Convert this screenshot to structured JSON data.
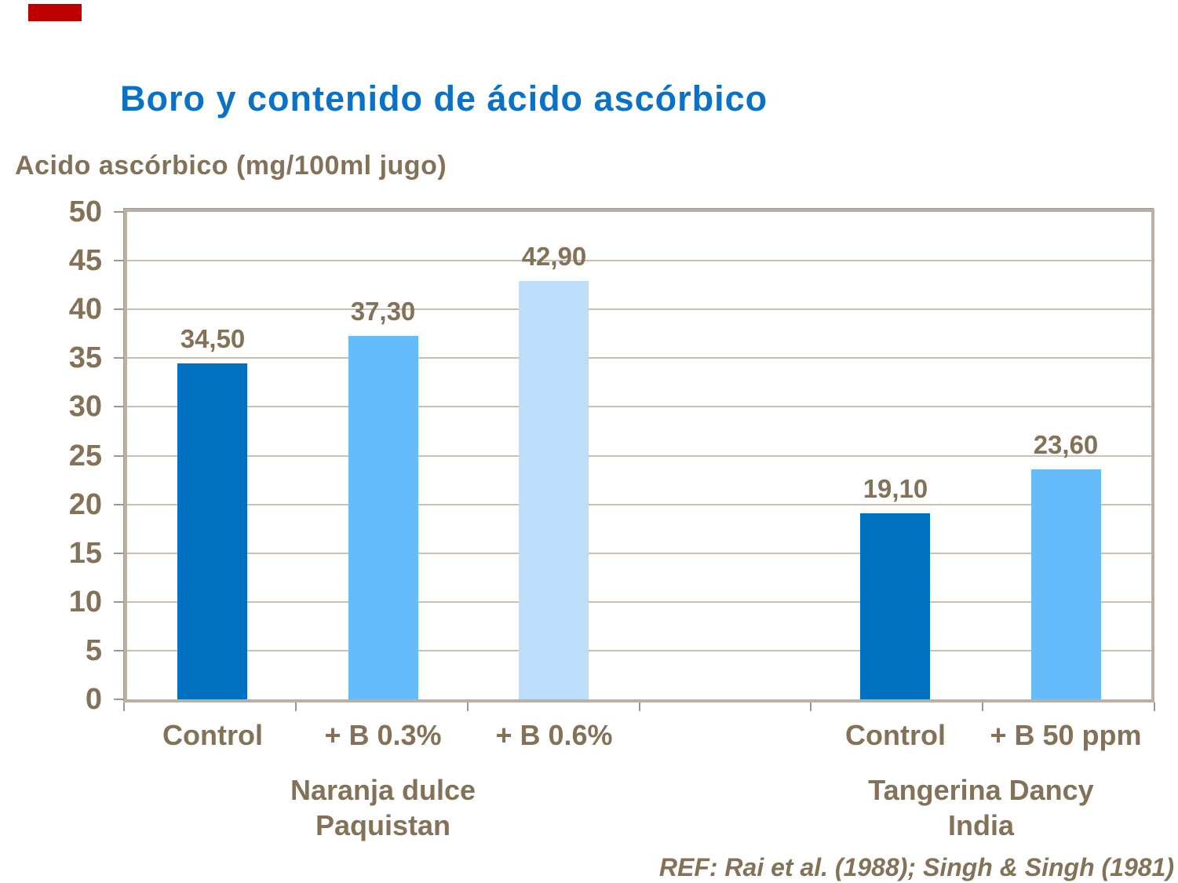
{
  "decor": {
    "corner_bar_color": "#c00000"
  },
  "title": {
    "text": "Boro y contenido de ácido ascórbico",
    "color": "#0a72c6"
  },
  "reference": {
    "text": "REF: Rai et al. (1988); Singh & Singh (1981)"
  },
  "colors": {
    "text_brown": "#837257",
    "gridline": "#cabfb2",
    "tick": "#a0958a",
    "plot_border": "#bcb0a2"
  },
  "chart_data": {
    "type": "bar",
    "title": "Boro y contenido de ácido ascórbico",
    "axis_title": "Acido ascórbico (mg/100ml jugo)",
    "xlabel": "",
    "ylabel": "Acido ascórbico (mg/100ml jugo)",
    "ylim": [
      0,
      50
    ],
    "ytick_step": 5,
    "yticks": [
      50,
      45,
      40,
      35,
      30,
      25,
      20,
      15,
      10,
      5,
      0
    ],
    "grid": true,
    "legend_position": "none",
    "category_slots": 6,
    "bars": [
      {
        "category": "Control",
        "value": 34.5,
        "display": "34,50",
        "slot": 0,
        "color": "#0071c1"
      },
      {
        "category": "+ B 0.3%",
        "value": 37.3,
        "display": "37,30",
        "slot": 1,
        "color": "#66bbfa"
      },
      {
        "category": "+ B 0.6%",
        "value": 42.9,
        "display": "42,90",
        "slot": 2,
        "color": "#bddefb"
      },
      {
        "category": "Control",
        "value": 19.1,
        "display": "19,10",
        "slot": 4,
        "color": "#0071c1"
      },
      {
        "category": "+ B 50 ppm",
        "value": 23.6,
        "display": "23,60",
        "slot": 5,
        "color": "#66bbfa"
      }
    ],
    "groups": [
      {
        "line1": "Naranja dulce",
        "line2": "Paquistan",
        "center_slot": 1.0
      },
      {
        "line1": "Tangerina Dancy",
        "line2": "India",
        "center_slot": 4.5
      }
    ]
  }
}
